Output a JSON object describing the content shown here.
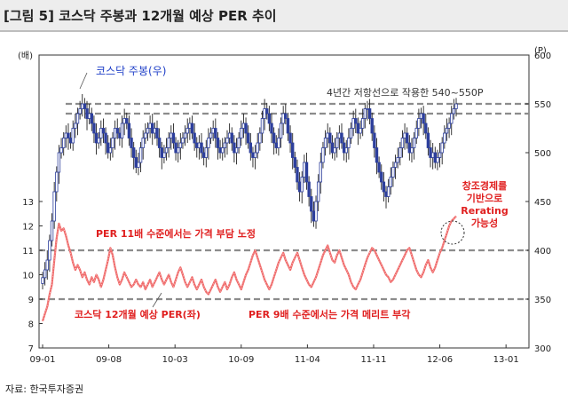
{
  "title": "[그림 5] 코스닥 주봉과 12개월 예상 PER 추이",
  "source": "자료: 한국투자증권",
  "colors": {
    "candle": "#2d3f9c",
    "candle_shadow": "#222222",
    "per_line": "#ef6a6a",
    "dashed": "#8c8c8c",
    "annotation_red": "#e02020",
    "annotation_blue": "#2040c8"
  },
  "chart_data": {
    "type": "line",
    "left_axis": {
      "unit_label": "(배)",
      "range": [
        7,
        19
      ],
      "ticks": [
        7,
        8,
        9,
        10,
        11,
        12,
        13
      ]
    },
    "right_axis": {
      "unit_label": "(P)",
      "range": [
        300,
        600
      ],
      "ticks": [
        300,
        350,
        400,
        450,
        500,
        550,
        600
      ]
    },
    "x_tick_labels": [
      "09-01",
      "09-08",
      "10-03",
      "10-09",
      "11-04",
      "11-11",
      "12-06",
      "13-01"
    ],
    "reference_lines": {
      "per": [
        9,
        11
      ],
      "index": [
        540,
        550
      ]
    },
    "series": [
      {
        "name": "코스닥 주봉(우)",
        "kind": "candlestick",
        "axis": "right",
        "weekly_close": [
          372,
          380,
          390,
          410,
          430,
          460,
          480,
          500,
          505,
          515,
          520,
          515,
          510,
          525,
          530,
          540,
          545,
          550,
          545,
          535,
          540,
          530,
          520,
          510,
          515,
          525,
          520,
          510,
          500,
          505,
          515,
          525,
          520,
          515,
          530,
          535,
          530,
          515,
          505,
          495,
          485,
          490,
          505,
          515,
          520,
          525,
          530,
          520,
          525,
          515,
          505,
          495,
          500,
          505,
          515,
          520,
          510,
          500,
          505,
          510,
          515,
          520,
          525,
          530,
          520,
          510,
          505,
          510,
          500,
          495,
          505,
          515,
          520,
          525,
          515,
          505,
          500,
          505,
          510,
          515,
          520,
          510,
          500,
          505,
          515,
          525,
          530,
          520,
          510,
          500,
          495,
          500,
          510,
          520,
          535,
          545,
          540,
          530,
          520,
          510,
          505,
          515,
          530,
          540,
          535,
          520,
          510,
          495,
          485,
          470,
          460,
          475,
          490,
          470,
          455,
          440,
          430,
          450,
          470,
          490,
          505,
          515,
          520,
          510,
          500,
          505,
          515,
          520,
          510,
          500,
          505,
          515,
          525,
          535,
          530,
          520,
          525,
          535,
          545,
          545,
          535,
          520,
          505,
          490,
          480,
          470,
          460,
          455,
          465,
          475,
          485,
          490,
          495,
          505,
          515,
          520,
          510,
          500,
          505,
          515,
          525,
          535,
          540,
          530,
          520,
          505,
          495,
          500,
          490,
          495,
          500,
          510,
          520,
          525,
          530,
          540,
          545,
          550
        ]
      },
      {
        "name": "코스닥 12개월 예상 PER(좌)",
        "kind": "line",
        "axis": "left",
        "values": [
          8.1,
          8.4,
          8.7,
          9.2,
          9.6,
          10.6,
          11.5,
          12.1,
          11.8,
          11.9,
          11.6,
          11.2,
          10.9,
          10.5,
          10.2,
          10.4,
          10.2,
          9.9,
          10.1,
          9.8,
          9.6,
          9.9,
          9.7,
          10.0,
          9.8,
          9.5,
          9.8,
          10.2,
          10.6,
          11.1,
          10.8,
          10.3,
          9.9,
          9.6,
          9.8,
          10.1,
          9.9,
          9.7,
          9.5,
          9.6,
          9.8,
          9.6,
          9.5,
          9.7,
          9.4,
          9.6,
          9.8,
          9.5,
          9.7,
          9.9,
          10.1,
          9.8,
          9.6,
          9.8,
          10.0,
          9.7,
          9.5,
          9.8,
          10.1,
          10.3,
          10.0,
          9.7,
          9.5,
          9.7,
          9.9,
          9.6,
          9.4,
          9.6,
          9.8,
          9.5,
          9.3,
          9.2,
          9.4,
          9.6,
          9.8,
          9.5,
          9.3,
          9.5,
          9.7,
          9.4,
          9.6,
          9.9,
          10.1,
          9.8,
          9.6,
          9.4,
          9.7,
          10.0,
          10.2,
          10.5,
          10.8,
          11.0,
          10.7,
          10.4,
          10.1,
          9.8,
          9.6,
          9.4,
          9.6,
          9.9,
          10.2,
          10.5,
          10.7,
          10.9,
          10.6,
          10.4,
          10.2,
          10.5,
          10.7,
          10.9,
          10.6,
          10.3,
          10.0,
          9.8,
          9.6,
          9.5,
          9.7,
          9.9,
          10.2,
          10.5,
          10.8,
          11.0,
          11.2,
          10.9,
          10.6,
          10.5,
          10.8,
          11.0,
          10.7,
          10.4,
          10.2,
          10.0,
          9.7,
          9.5,
          9.4,
          9.6,
          9.8,
          10.1,
          10.4,
          10.7,
          10.9,
          11.1,
          11.0,
          10.8,
          10.6,
          10.4,
          10.2,
          10.0,
          9.9,
          9.7,
          9.8,
          10.0,
          10.2,
          10.4,
          10.6,
          10.8,
          11.0,
          11.1,
          10.8,
          10.5,
          10.2,
          10.0,
          9.9,
          10.1,
          10.4,
          10.6,
          10.3,
          10.1,
          10.3,
          10.6,
          10.9,
          11.1,
          11.4,
          11.7,
          12.0,
          12.2,
          12.3,
          12.4
        ]
      }
    ],
    "annotations": {
      "candle_label": "코스닥 주봉(우)",
      "resistance_note": "4년간 저항선으로 작용한 540~550P",
      "per11_note": "PER 11배 수준에서는 가격 부담 노정",
      "per_label": "코스닥 12개월 예상 PER(좌)",
      "per9_note": "PER 9배 수준에서는 가격 메리트 부각",
      "rerating_note": [
        "창조경제를",
        "기반으로",
        "Rerating",
        "가능성"
      ]
    }
  }
}
